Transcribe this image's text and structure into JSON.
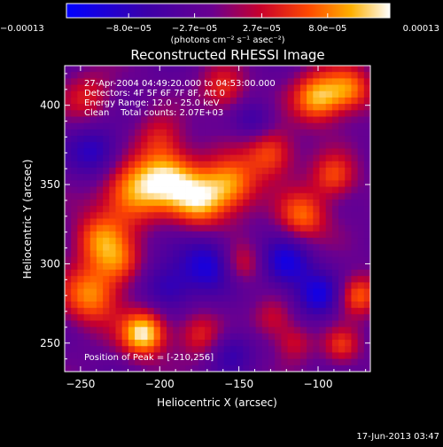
{
  "chart_data": {
    "type": "heatmap",
    "title": "Reconstructed RHESSI Image",
    "xlabel": "Heliocentric X (arcsec)",
    "ylabel": "Heliocentric Y (arcsec)",
    "xlim": [
      -260,
      -67
    ],
    "ylim": [
      232,
      425
    ],
    "x_ticks": [
      {
        "value": -250,
        "label": "−250"
      },
      {
        "value": -200,
        "label": "−200"
      },
      {
        "value": -150,
        "label": "−150"
      },
      {
        "value": -100,
        "label": "−100"
      }
    ],
    "y_ticks": [
      {
        "value": 250,
        "label": "250"
      },
      {
        "value": 300,
        "label": "300"
      },
      {
        "value": 350,
        "label": "350"
      },
      {
        "value": 400,
        "label": "400"
      }
    ],
    "colorbar": {
      "min": -0.00013,
      "max": 0.00013,
      "ticks": [
        {
          "value": -0.00013,
          "label": "−0.00013"
        },
        {
          "value": -8e-05,
          "label": "−8.0e−05"
        },
        {
          "value": -2.7e-05,
          "label": "−2.7e−05"
        },
        {
          "value": 2.7e-05,
          "label": "2.7e−05"
        },
        {
          "value": 8e-05,
          "label": "8.0e−05"
        },
        {
          "value": 0.00013,
          "label": "0.00013"
        }
      ],
      "unit_label": "(photons cm⁻² s⁻¹ asec⁻²)"
    },
    "peak": {
      "x": -210,
      "y": 256
    },
    "annotations": {
      "time_range": "27-Apr-2004 04:49:20.000 to 04:53:00.000",
      "detectors": "Detectors: 4F 5F 6F 7F 8F, Att 0",
      "energy": "Energy Range: 12.0 - 25.0 keV",
      "clean": "Clean    Total counts: 2.07E+03",
      "peak_text": "Position of Peak = [-210,256]"
    },
    "blobs": [
      {
        "x": -210,
        "y": 256,
        "amp": 1.25,
        "sigma": 10
      },
      {
        "x": -243,
        "y": 280,
        "amp": 0.9,
        "sigma": 13
      },
      {
        "x": -238,
        "y": 315,
        "amp": 0.8,
        "sigma": 12
      },
      {
        "x": -218,
        "y": 345,
        "amp": 0.95,
        "sigma": 14
      },
      {
        "x": -195,
        "y": 355,
        "amp": 1.0,
        "sigma": 13
      },
      {
        "x": -225,
        "y": 300,
        "amp": 0.55,
        "sigma": 10
      },
      {
        "x": -175,
        "y": 340,
        "amp": 1.0,
        "sigma": 12
      },
      {
        "x": -155,
        "y": 350,
        "amp": 0.9,
        "sigma": 12
      },
      {
        "x": -130,
        "y": 370,
        "amp": 0.75,
        "sigma": 11
      },
      {
        "x": -100,
        "y": 405,
        "amp": 1.05,
        "sigma": 11
      },
      {
        "x": -80,
        "y": 410,
        "amp": 0.8,
        "sigma": 10
      },
      {
        "x": -110,
        "y": 330,
        "amp": 0.8,
        "sigma": 11
      },
      {
        "x": -90,
        "y": 355,
        "amp": 0.7,
        "sigma": 10
      },
      {
        "x": -160,
        "y": 410,
        "amp": 0.6,
        "sigma": 10
      },
      {
        "x": -245,
        "y": 405,
        "amp": 0.5,
        "sigma": 11
      },
      {
        "x": -148,
        "y": 300,
        "amp": 0.5,
        "sigma": 9
      },
      {
        "x": -175,
        "y": 255,
        "amp": 0.55,
        "sigma": 10
      },
      {
        "x": -128,
        "y": 265,
        "amp": 0.45,
        "sigma": 9
      },
      {
        "x": -75,
        "y": 280,
        "amp": 0.8,
        "sigma": 9
      },
      {
        "x": -115,
        "y": 250,
        "amp": 0.45,
        "sigma": 8
      },
      {
        "x": -85,
        "y": 248,
        "amp": 0.55,
        "sigma": 8
      },
      {
        "x": -200,
        "y": 380,
        "amp": 0.45,
        "sigma": 10
      },
      {
        "x": -170,
        "y": 300,
        "amp": -0.7,
        "sigma": 12
      },
      {
        "x": -195,
        "y": 285,
        "amp": -0.55,
        "sigma": 11
      },
      {
        "x": -120,
        "y": 300,
        "amp": -0.75,
        "sigma": 11
      },
      {
        "x": -100,
        "y": 280,
        "amp": -0.7,
        "sigma": 10
      },
      {
        "x": -240,
        "y": 370,
        "amp": -0.6,
        "sigma": 12
      },
      {
        "x": -140,
        "y": 390,
        "amp": -0.4,
        "sigma": 9
      },
      {
        "x": -155,
        "y": 245,
        "amp": -0.45,
        "sigma": 10
      }
    ]
  },
  "footer": {
    "date": "17-Jun-2013 03:47"
  }
}
